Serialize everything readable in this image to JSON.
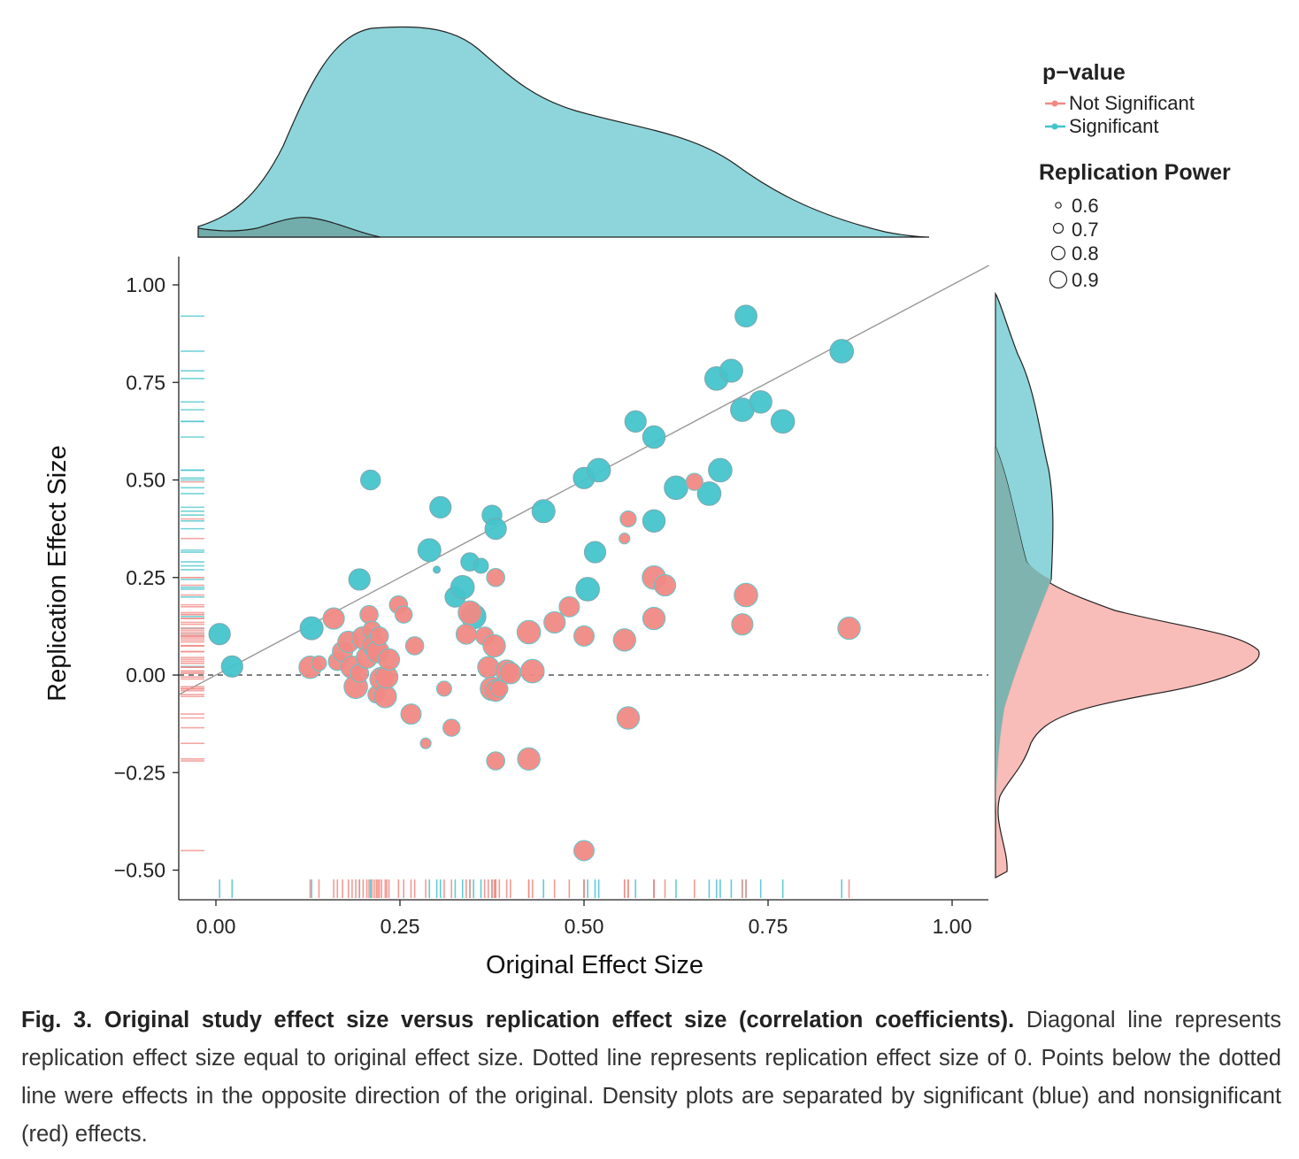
{
  "chart_data": {
    "type": "scatter",
    "xlabel": "Original Effect Size",
    "ylabel": "Replication Effect Size",
    "xlim": [
      -0.05,
      1.05
    ],
    "ylim": [
      -0.57,
      1.07
    ],
    "xticks": [
      "0.00",
      "0.25",
      "0.50",
      "0.75",
      "1.00"
    ],
    "yticks": [
      "1.00",
      "0.75",
      "0.50",
      "0.25",
      "0.00",
      "−0.25",
      "−0.50"
    ],
    "xtick_values": [
      0,
      0.25,
      0.5,
      0.75,
      1.0
    ],
    "ytick_values": [
      1.0,
      0.75,
      0.5,
      0.25,
      0,
      -0.25,
      -0.5
    ],
    "diagonal_line": "y = x",
    "dotted_line": "y = 0",
    "marginals": "density plots on top and right, rug plots along axes",
    "legend": {
      "color_title": "p−value",
      "color_entries": [
        {
          "label": "Not Significant",
          "color": "#f08a84"
        },
        {
          "label": "Significant",
          "color": "#45c4cb"
        }
      ],
      "size_title": "Replication Power",
      "size_entries": [
        "0.6",
        "0.7",
        "0.8",
        "0.9"
      ],
      "size_values": [
        0.6,
        0.7,
        0.8,
        0.9
      ],
      "placement": "right"
    },
    "series": [
      {
        "name": "Significant",
        "color": "#45c4cb",
        "points": [
          [
            0.005,
            0.105,
            0.82
          ],
          [
            0.022,
            0.022,
            0.82
          ],
          [
            0.13,
            0.12,
            0.85
          ],
          [
            0.195,
            0.245,
            0.82
          ],
          [
            0.21,
            0.5,
            0.79
          ],
          [
            0.29,
            0.32,
            0.85
          ],
          [
            0.305,
            0.43,
            0.82
          ],
          [
            0.3,
            0.27,
            0.55
          ],
          [
            0.325,
            0.2,
            0.8
          ],
          [
            0.335,
            0.225,
            0.86
          ],
          [
            0.345,
            0.29,
            0.76
          ],
          [
            0.36,
            0.28,
            0.7
          ],
          [
            0.35,
            0.15,
            0.88
          ],
          [
            0.375,
            0.41,
            0.79
          ],
          [
            0.38,
            0.375,
            0.82
          ],
          [
            0.445,
            0.42,
            0.85
          ],
          [
            0.5,
            0.505,
            0.82
          ],
          [
            0.52,
            0.525,
            0.86
          ],
          [
            0.515,
            0.315,
            0.82
          ],
          [
            0.505,
            0.22,
            0.86
          ],
          [
            0.57,
            0.65,
            0.82
          ],
          [
            0.595,
            0.61,
            0.84
          ],
          [
            0.595,
            0.395,
            0.84
          ],
          [
            0.625,
            0.48,
            0.86
          ],
          [
            0.67,
            0.465,
            0.86
          ],
          [
            0.685,
            0.525,
            0.86
          ],
          [
            0.68,
            0.76,
            0.86
          ],
          [
            0.7,
            0.78,
            0.85
          ],
          [
            0.715,
            0.68,
            0.86
          ],
          [
            0.74,
            0.7,
            0.84
          ],
          [
            0.77,
            0.65,
            0.86
          ],
          [
            0.72,
            0.92,
            0.83
          ],
          [
            0.85,
            0.83,
            0.86
          ]
        ]
      },
      {
        "name": "Not Significant",
        "color": "#f08a84",
        "points": [
          [
            0.128,
            0.02,
            0.84
          ],
          [
            0.14,
            0.03,
            0.7
          ],
          [
            0.16,
            0.145,
            0.82
          ],
          [
            0.165,
            0.035,
            0.76
          ],
          [
            0.172,
            0.06,
            0.8
          ],
          [
            0.18,
            0.085,
            0.82
          ],
          [
            0.185,
            0.02,
            0.84
          ],
          [
            0.19,
            -0.03,
            0.86
          ],
          [
            0.195,
            0.005,
            0.76
          ],
          [
            0.2,
            0.095,
            0.84
          ],
          [
            0.205,
            0.045,
            0.82
          ],
          [
            0.208,
            0.155,
            0.76
          ],
          [
            0.212,
            0.115,
            0.76
          ],
          [
            0.215,
            0.075,
            0.84
          ],
          [
            0.218,
            -0.05,
            0.74
          ],
          [
            0.22,
            0.06,
            0.84
          ],
          [
            0.222,
            0.1,
            0.76
          ],
          [
            0.225,
            -0.01,
            0.86
          ],
          [
            0.23,
            -0.055,
            0.84
          ],
          [
            0.232,
            -0.005,
            0.84
          ],
          [
            0.235,
            0.04,
            0.82
          ],
          [
            0.248,
            0.18,
            0.76
          ],
          [
            0.255,
            0.155,
            0.74
          ],
          [
            0.265,
            -0.1,
            0.8
          ],
          [
            0.27,
            0.075,
            0.76
          ],
          [
            0.285,
            -0.175,
            0.62
          ],
          [
            0.31,
            -0.035,
            0.7
          ],
          [
            0.32,
            -0.135,
            0.74
          ],
          [
            0.34,
            0.105,
            0.8
          ],
          [
            0.345,
            0.16,
            0.86
          ],
          [
            0.365,
            0.1,
            0.76
          ],
          [
            0.37,
            0.02,
            0.82
          ],
          [
            0.375,
            -0.035,
            0.86
          ],
          [
            0.378,
            0.075,
            0.84
          ],
          [
            0.38,
            0.25,
            0.76
          ],
          [
            0.38,
            -0.04,
            0.82
          ],
          [
            0.38,
            -0.22,
            0.76
          ],
          [
            0.385,
            -0.035,
            0.74
          ],
          [
            0.395,
            0.01,
            0.84
          ],
          [
            0.4,
            0.005,
            0.82
          ],
          [
            0.425,
            0.11,
            0.86
          ],
          [
            0.43,
            0.01,
            0.86
          ],
          [
            0.425,
            -0.215,
            0.84
          ],
          [
            0.46,
            0.135,
            0.82
          ],
          [
            0.48,
            0.175,
            0.8
          ],
          [
            0.5,
            0.1,
            0.8
          ],
          [
            0.5,
            -0.45,
            0.8
          ],
          [
            0.555,
            0.35,
            0.62
          ],
          [
            0.56,
            0.4,
            0.72
          ],
          [
            0.555,
            0.09,
            0.84
          ],
          [
            0.56,
            -0.11,
            0.84
          ],
          [
            0.595,
            0.145,
            0.84
          ],
          [
            0.595,
            0.25,
            0.86
          ],
          [
            0.61,
            0.23,
            0.82
          ],
          [
            0.65,
            0.495,
            0.74
          ],
          [
            0.715,
            0.13,
            0.82
          ],
          [
            0.72,
            0.205,
            0.86
          ],
          [
            0.86,
            0.12,
            0.84
          ]
        ]
      }
    ]
  },
  "caption": {
    "title": "Fig. 3. Original study effect size versus replication effect size (correlation coefficients).",
    "body": "Diagonal line represents replication effect size equal to original effect size. Dotted line represents replication effect size of 0. Points below the dotted line were effects in the opposite direction of the original. Density plots are separated by significant (blue) and nonsignificant (red) effects."
  }
}
